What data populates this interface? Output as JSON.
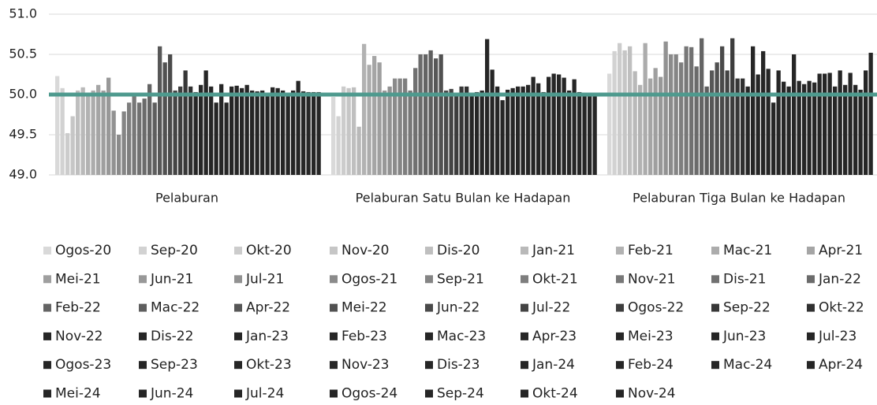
{
  "chart_data": {
    "type": "bar",
    "categories": [
      "Pelaburan",
      "Pelaburan Satu Bulan ke Hadapan",
      "Pelaburan Tiga Bulan ke Hadapan"
    ],
    "ylim": [
      49,
      51
    ],
    "yticks": [
      {
        "value": 49,
        "label": "49.0"
      },
      49.5,
      {
        "value": 50,
        "label": "50.0"
      },
      50.5,
      {
        "value": 51,
        "label": "51.0"
      }
    ],
    "grid": true,
    "reference_line": 50,
    "reference_color": "#4e9a8e",
    "series": [
      {
        "name": "Ogos-20",
        "color": "#d9d9d9",
        "values": [
          50.23,
          49.97,
          50.26
        ]
      },
      {
        "name": "Sep-20",
        "color": "#d2d2d2",
        "values": [
          50.08,
          49.73,
          50.54
        ]
      },
      {
        "name": "Okt-20",
        "color": "#cccccc",
        "values": [
          49.52,
          50.1,
          50.64
        ]
      },
      {
        "name": "Nov-20",
        "color": "#c6c6c6",
        "values": [
          49.73,
          50.08,
          50.55
        ]
      },
      {
        "name": "Dis-20",
        "color": "#bfbfbf",
        "values": [
          50.05,
          50.09,
          50.6
        ]
      },
      {
        "name": "Jan-21",
        "color": "#b9b9b9",
        "values": [
          50.09,
          49.6,
          50.29
        ]
      },
      {
        "name": "Feb-21",
        "color": "#b2b2b2",
        "values": [
          49.98,
          50.63,
          50.12
        ]
      },
      {
        "name": "Mac-21",
        "color": "#acacac",
        "values": [
          50.05,
          50.37,
          50.64
        ]
      },
      {
        "name": "Apr-21",
        "color": "#a5a5a5",
        "values": [
          50.12,
          50.48,
          50.2
        ]
      },
      {
        "name": "Mei-21",
        "color": "#9f9f9f",
        "values": [
          50.05,
          50.4,
          50.33
        ]
      },
      {
        "name": "Jun-21",
        "color": "#989898",
        "values": [
          50.21,
          50.05,
          50.22
        ]
      },
      {
        "name": "Jul-21",
        "color": "#929292",
        "values": [
          49.8,
          50.1,
          50.66
        ]
      },
      {
        "name": "Ogos-21",
        "color": "#8b8b8b",
        "values": [
          49.5,
          50.2,
          50.5
        ]
      },
      {
        "name": "Sep-21",
        "color": "#858585",
        "values": [
          49.79,
          50.2,
          50.5
        ]
      },
      {
        "name": "Okt-21",
        "color": "#7e7e7e",
        "values": [
          49.9,
          50.2,
          50.4
        ]
      },
      {
        "name": "Nov-21",
        "color": "#787878",
        "values": [
          49.99,
          50.05,
          50.6
        ]
      },
      {
        "name": "Dis-21",
        "color": "#717171",
        "values": [
          49.9,
          50.33,
          50.59
        ]
      },
      {
        "name": "Jan-22",
        "color": "#6b6b6b",
        "values": [
          49.95,
          50.5,
          50.35
        ]
      },
      {
        "name": "Feb-22",
        "color": "#646464",
        "values": [
          50.13,
          50.5,
          50.7
        ]
      },
      {
        "name": "Mac-22",
        "color": "#5e5e5e",
        "values": [
          49.9,
          50.55,
          50.1
        ]
      },
      {
        "name": "Apr-22",
        "color": "#575757",
        "values": [
          50.6,
          50.45,
          50.3
        ]
      },
      {
        "name": "Mei-22",
        "color": "#515151",
        "values": [
          50.4,
          50.5,
          50.4
        ]
      },
      {
        "name": "Jun-22",
        "color": "#4a4a4a",
        "values": [
          50.5,
          50.05,
          50.6
        ]
      },
      {
        "name": "Jul-22",
        "color": "#444444",
        "values": [
          50.05,
          50.07,
          50.3
        ]
      },
      {
        "name": "Ogos-22",
        "color": "#3d3d3d",
        "values": [
          50.1,
          50.02,
          50.7
        ]
      },
      {
        "name": "Sep-22",
        "color": "#373737",
        "values": [
          50.3,
          50.1,
          50.2
        ]
      },
      {
        "name": "Okt-22",
        "color": "#303030",
        "values": [
          50.1,
          50.1,
          50.2
        ]
      },
      {
        "name": "Nov-22",
        "color": "#262626",
        "values": [
          50.03,
          50.02,
          50.1
        ]
      },
      {
        "name": "Dis-22",
        "color": "#262626",
        "values": [
          50.12,
          50.03,
          50.6
        ]
      },
      {
        "name": "Jan-23",
        "color": "#262626",
        "values": [
          50.3,
          50.05,
          50.25
        ]
      },
      {
        "name": "Feb-23",
        "color": "#262626",
        "values": [
          50.1,
          50.69,
          50.54
        ]
      },
      {
        "name": "Mac-23",
        "color": "#262626",
        "values": [
          49.9,
          50.31,
          50.32
        ]
      },
      {
        "name": "Apr-23",
        "color": "#262626",
        "values": [
          50.13,
          50.1,
          49.9
        ]
      },
      {
        "name": "Mei-23",
        "color": "#262626",
        "values": [
          49.9,
          49.93,
          50.3
        ]
      },
      {
        "name": "Jun-23",
        "color": "#262626",
        "values": [
          50.1,
          50.06,
          50.16
        ]
      },
      {
        "name": "Jul-23",
        "color": "#262626",
        "values": [
          50.11,
          50.08,
          50.1
        ]
      },
      {
        "name": "Ogos-23",
        "color": "#262626",
        "values": [
          50.08,
          50.1,
          50.5
        ]
      },
      {
        "name": "Sep-23",
        "color": "#262626",
        "values": [
          50.12,
          50.1,
          50.17
        ]
      },
      {
        "name": "Okt-23",
        "color": "#262626",
        "values": [
          50.05,
          50.12,
          50.13
        ]
      },
      {
        "name": "Nov-23",
        "color": "#262626",
        "values": [
          50.04,
          50.22,
          50.17
        ]
      },
      {
        "name": "Dis-23",
        "color": "#262626",
        "values": [
          50.05,
          50.14,
          50.15
        ]
      },
      {
        "name": "Jan-24",
        "color": "#262626",
        "values": [
          50.02,
          50.03,
          50.26
        ]
      },
      {
        "name": "Feb-24",
        "color": "#262626",
        "values": [
          50.09,
          50.22,
          50.26
        ]
      },
      {
        "name": "Mac-24",
        "color": "#262626",
        "values": [
          50.08,
          50.26,
          50.27
        ]
      },
      {
        "name": "Apr-24",
        "color": "#262626",
        "values": [
          50.05,
          50.25,
          50.1
        ]
      },
      {
        "name": "Mei-24",
        "color": "#262626",
        "values": [
          50.02,
          50.21,
          50.3
        ]
      },
      {
        "name": "Jun-24",
        "color": "#262626",
        "values": [
          50.05,
          50.05,
          50.12
        ]
      },
      {
        "name": "Jul-24",
        "color": "#262626",
        "values": [
          50.17,
          50.19,
          50.27
        ]
      },
      {
        "name": "Ogos-24",
        "color": "#262626",
        "values": [
          50.04,
          50.03,
          50.12
        ]
      },
      {
        "name": "Sep-24",
        "color": "#262626",
        "values": [
          50.03,
          50.02,
          50.06
        ]
      },
      {
        "name": "Okt-24",
        "color": "#262626",
        "values": [
          50.03,
          50.02,
          50.3
        ]
      },
      {
        "name": "Nov-24",
        "color": "#262626",
        "values": [
          50.03,
          50.02,
          50.52
        ]
      }
    ]
  }
}
